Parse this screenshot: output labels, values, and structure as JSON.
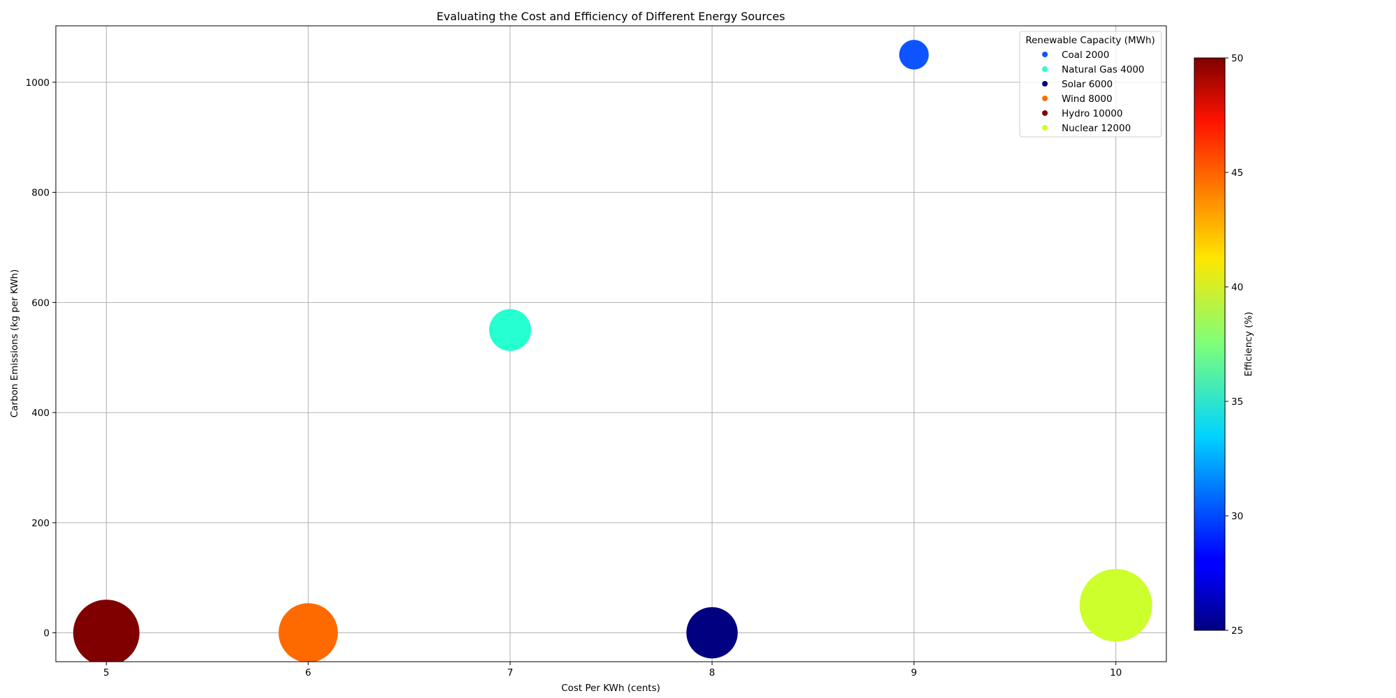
{
  "chart_data": {
    "type": "scatter",
    "title": "Evaluating the Cost and Efficiency of Different Energy Sources",
    "xlabel": "Cost Per KWh (cents)",
    "ylabel": "Carbon Emissions (kg per KWh)",
    "xlim": [
      4.75,
      10.25
    ],
    "ylim": [
      -52.5,
      1102.5
    ],
    "xticks": [
      5,
      6,
      7,
      8,
      9,
      10
    ],
    "yticks": [
      0,
      200,
      400,
      600,
      800,
      1000
    ],
    "grid": true,
    "legend": {
      "title": "Renewable Capacity (MWh)",
      "position": "top-right"
    },
    "colorbar": {
      "label": "Efficiency (%)",
      "min": 25,
      "max": 50,
      "ticks": [
        25,
        30,
        35,
        40,
        45,
        50
      ],
      "colormap": "jet"
    },
    "points": [
      {
        "label": "Coal 2000",
        "x": 9,
        "y": 1050,
        "capacity": 2000,
        "efficiency": 30,
        "color": "#0d53ff"
      },
      {
        "label": "Natural Gas 4000",
        "x": 7,
        "y": 550,
        "capacity": 4000,
        "efficiency": 36,
        "color": "#26ffd0"
      },
      {
        "label": "Solar 6000",
        "x": 8,
        "y": 0,
        "capacity": 6000,
        "efficiency": 25,
        "color": "#000080"
      },
      {
        "label": "Wind 8000",
        "x": 6,
        "y": 0,
        "capacity": 8000,
        "efficiency": 45,
        "color": "#ff6a00"
      },
      {
        "label": "Hydro 10000",
        "x": 5,
        "y": 0,
        "capacity": 10000,
        "efficiency": 50,
        "color": "#800000"
      },
      {
        "label": "Nuclear 12000",
        "x": 10,
        "y": 50,
        "capacity": 12000,
        "efficiency": 40,
        "color": "#ccff2b"
      }
    ]
  }
}
